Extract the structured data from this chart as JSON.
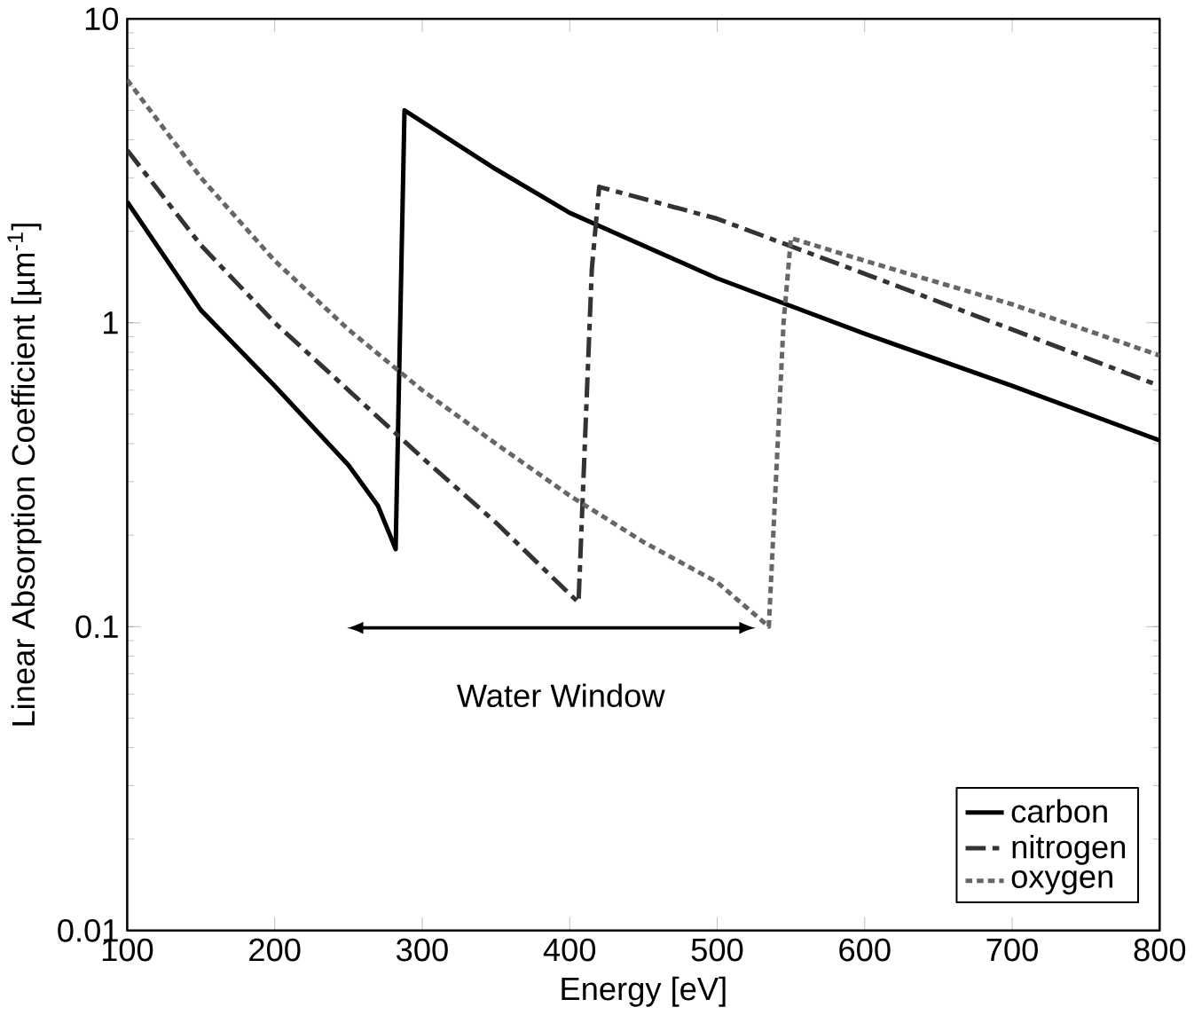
{
  "chart_data": {
    "type": "line",
    "xlabel": "Energy [eV]",
    "ylabel": "Linear Absorption Coefficient [µm$^{-1}$]",
    "log": "y",
    "xlim": [
      100,
      800
    ],
    "ylim": [
      0.01,
      10
    ],
    "xticks": [
      100,
      200,
      300,
      400,
      500,
      600,
      700,
      800
    ],
    "yticks": [
      0.01,
      0.1,
      1,
      10
    ],
    "legend": "bottom right",
    "marker": "none",
    "series": [
      {
        "name": "carbon",
        "color": "#000000",
        "line_style": "solid",
        "x": [
          100,
          150,
          200,
          250,
          270,
          282,
          288,
          350,
          400,
          500,
          600,
          700,
          800
        ],
        "values": [
          2.5,
          1.1,
          0.62,
          0.34,
          0.25,
          0.18,
          5.0,
          3.2,
          2.3,
          1.4,
          0.92,
          0.62,
          0.41
        ]
      },
      {
        "name": "nitrogen",
        "color": "#333333",
        "line_style": "dashdot",
        "x": [
          100,
          150,
          200,
          250,
          300,
          350,
          406,
          415,
          420,
          500,
          600,
          700,
          800
        ],
        "values": [
          3.7,
          1.8,
          1.0,
          0.6,
          0.36,
          0.22,
          0.12,
          1.5,
          2.8,
          2.2,
          1.45,
          0.95,
          0.62
        ]
      },
      {
        "name": "oxygen",
        "color": "#666666",
        "line_style": "dotted",
        "x": [
          100,
          150,
          200,
          250,
          300,
          350,
          400,
          450,
          500,
          535,
          545,
          550,
          600,
          700,
          800
        ],
        "values": [
          6.3,
          3.0,
          1.6,
          0.95,
          0.6,
          0.4,
          0.27,
          0.19,
          0.14,
          0.1,
          1.0,
          1.9,
          1.6,
          1.15,
          0.78
        ]
      }
    ],
    "annotations": [
      "Water Window"
    ]
  }
}
